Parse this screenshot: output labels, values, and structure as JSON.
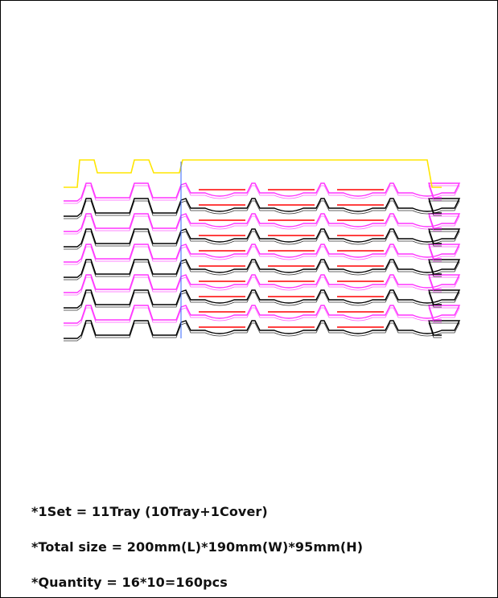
{
  "notes": {
    "set": "*1Set = 11Tray (10Tray+1Cover)",
    "size": "*Total size = 200mm(L)*190mm(W)*95mm(H)",
    "quantity": "*Quantity = 16*10=160pcs"
  },
  "drawing": {
    "tray_count": 10,
    "cover_count": 1,
    "colors": {
      "cover": "#ffe600",
      "tray_a": "#ff33ff",
      "tray_b": "#000000",
      "pocket_highlight": "#ff0000",
      "divider": "#3366ff"
    }
  }
}
